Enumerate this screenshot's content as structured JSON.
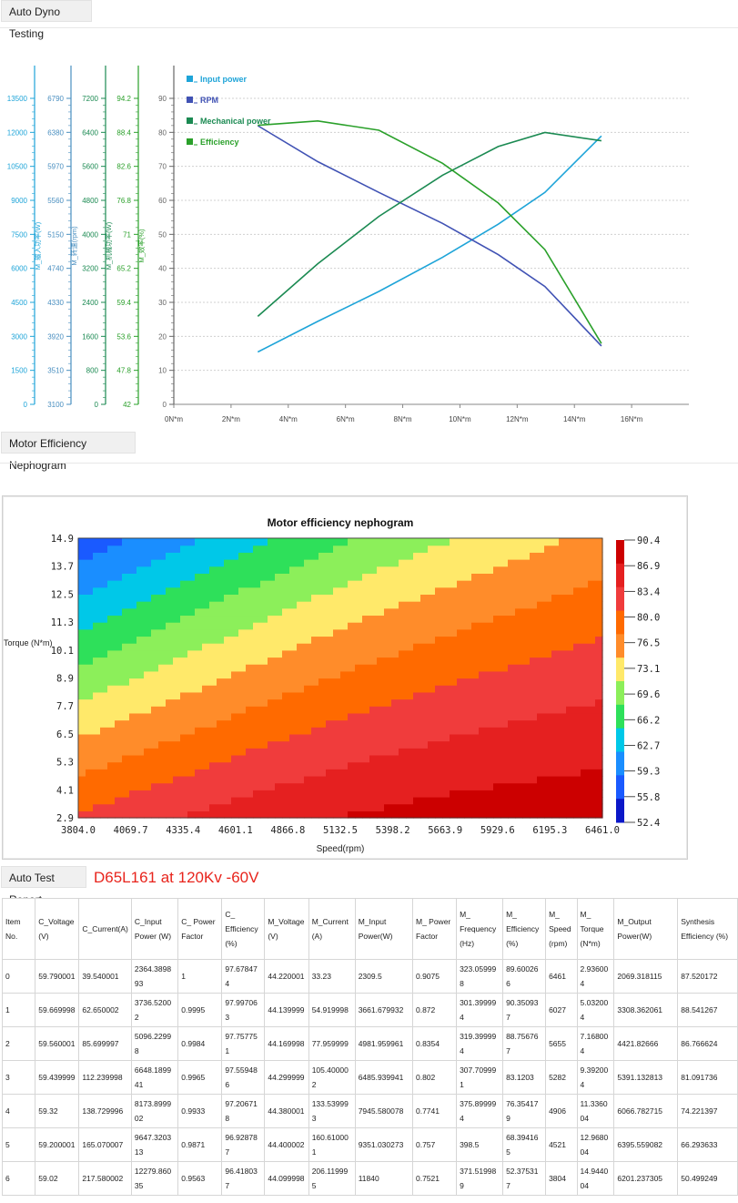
{
  "sections": {
    "dyno_label": "Auto Dyno Testing",
    "nephogram_label": "Motor Efficiency Nephogram",
    "report_label": "Auto Test Report",
    "report_title": "D65L161 at 120Kv -60V"
  },
  "colors": {
    "input_power": "#1ea4d8",
    "rpm": "#4052b4",
    "mechanical_power": "#1b8a52",
    "efficiency": "#2aa02a",
    "grid": "#d0d0d0"
  },
  "chart_data": [
    {
      "type": "line",
      "title": "",
      "xlabel": "",
      "x_ticks": [
        "0N*m",
        "2N*m",
        "4N*m",
        "6N*m",
        "8N*m",
        "10N*m",
        "12N*m",
        "14N*m",
        "16N*m"
      ],
      "xlim": [
        0,
        18
      ],
      "legend": [
        "Input power",
        "RPM",
        "Mechanical power",
        "Efficiency"
      ],
      "legend_position": "top-left",
      "grid": true,
      "axes": [
        {
          "label": "M_输入功率(W)",
          "ticks": [
            "0",
            "1500",
            "3000",
            "4500",
            "6000",
            "7500",
            "9000",
            "10500",
            "12000",
            "13500"
          ],
          "color": "#1ea4d8",
          "min": 0,
          "max": 15000
        },
        {
          "label": "M_转速(rpm)",
          "ticks": [
            "3100",
            "3510",
            "3920",
            "4330",
            "4740",
            "5150",
            "5560",
            "5970",
            "6380",
            "6790"
          ],
          "color": "#4a8fc0",
          "min": 3100,
          "max": 7200
        },
        {
          "label": "M_机械功率(W)",
          "ticks": [
            "0",
            "800",
            "1600",
            "2400",
            "3200",
            "4000",
            "4800",
            "5600",
            "6400",
            "7200"
          ],
          "color": "#1b8a52",
          "min": 0,
          "max": 8000
        },
        {
          "label": "M_效率(%)",
          "ticks": [
            "42",
            "47.8",
            "53.6",
            "59.4",
            "65.2",
            "71",
            "76.8",
            "82.6",
            "88.4",
            "94.2"
          ],
          "color": "#2aa02a",
          "min": 42,
          "max": 100
        },
        {
          "label": "",
          "ticks": [
            "0",
            "10",
            "20",
            "30",
            "40",
            "50",
            "60",
            "70",
            "80",
            "90"
          ],
          "color": "#666666",
          "min": 0,
          "max": 100
        }
      ],
      "series": [
        {
          "name": "Input power",
          "x": [
            2.936,
            5.032,
            7.168,
            9.392,
            11.336,
            12.968,
            14.944
          ],
          "y": [
            2309.5,
            3661.68,
            4981.96,
            6485.94,
            7945.58,
            9351.03,
            11840
          ]
        },
        {
          "name": "RPM",
          "x": [
            2.936,
            5.032,
            7.168,
            9.392,
            11.336,
            12.968,
            14.944
          ],
          "y": [
            6461,
            6027,
            5655,
            5282,
            4906,
            4521,
            3804
          ]
        },
        {
          "name": "Mechanical power",
          "x": [
            2.936,
            5.032,
            7.168,
            9.392,
            11.336,
            12.968,
            14.944
          ],
          "y": [
            2069.32,
            3308.36,
            4421.83,
            5391.13,
            6066.78,
            6395.56,
            6201.24
          ]
        },
        {
          "name": "Efficiency",
          "x": [
            2.936,
            5.032,
            7.168,
            9.392,
            11.336,
            12.968,
            14.944
          ],
          "y": [
            89.6,
            90.35,
            88.76,
            83.12,
            76.35,
            68.39,
            52.38
          ]
        }
      ]
    },
    {
      "type": "heatmap",
      "title": "Motor efficiency nephogram",
      "xlabel": "Speed(rpm)",
      "ylabel": "Torque (N*m)",
      "x_ticks": [
        "3804.0",
        "4069.7",
        "4335.4",
        "4601.1",
        "4866.8",
        "5132.5",
        "5398.2",
        "5663.9",
        "5929.6",
        "6195.3",
        "6461.0"
      ],
      "y_ticks": [
        "2.9",
        "4.1",
        "5.3",
        "6.5",
        "7.7",
        "8.9",
        "10.1",
        "11.3",
        "12.5",
        "13.7",
        "14.9"
      ],
      "xlim": [
        3804.0,
        6461.0
      ],
      "ylim": [
        2.9,
        14.9
      ],
      "colorbar_ticks": [
        "90.4",
        "86.9",
        "83.4",
        "80.0",
        "76.5",
        "73.1",
        "69.6",
        "66.2",
        "62.7",
        "59.3",
        "55.8",
        "52.4"
      ],
      "colorbar_colors": [
        "#cc0000",
        "#e52020",
        "#f03c3c",
        "#ff6a00",
        "#ff8c2a",
        "#ffe96a",
        "#8cef5a",
        "#2ee05a",
        "#00c8e8",
        "#1a8eff",
        "#1a5aff",
        "#0b18c8"
      ]
    },
    {
      "type": "table",
      "columns": [
        "Item No.",
        "C_Voltage (V)",
        "C_Current(A)",
        "C_Input Power (W)",
        "C_ Power Factor",
        "C_ Efficiency (%)",
        "M_Voltage (V)",
        "M_Current (A)",
        "M_Input Power(W)",
        "M_ Power Factor",
        "M_ Frequency (Hz)",
        "M_ Efficiency (%)",
        "M_ Speed (rpm)",
        "M_ Torque (N*m)",
        "M_Output Power(W)",
        "Synthesis Efficiency (%)"
      ],
      "rows": [
        [
          "0",
          "59.790001",
          "39.540001",
          "2364.389893",
          "1",
          "97.678474",
          "44.220001",
          "33.23",
          "2309.5",
          "0.9075",
          "323.059998",
          "89.600266",
          "6461",
          "2.936004",
          "2069.318115",
          "87.520172"
        ],
        [
          "1",
          "59.669998",
          "62.650002",
          "3736.52002",
          "0.9995",
          "97.997063",
          "44.139999",
          "54.919998",
          "3661.679932",
          "0.872",
          "301.399994",
          "90.350937",
          "6027",
          "5.032004",
          "3308.362061",
          "88.541267"
        ],
        [
          "2",
          "59.560001",
          "85.699997",
          "5096.22998",
          "0.9984",
          "97.757751",
          "44.169998",
          "77.959999",
          "4981.959961",
          "0.8354",
          "319.399994",
          "88.756767",
          "5655",
          "7.168004",
          "4421.82666",
          "86.766624"
        ],
        [
          "3",
          "59.439999",
          "112.239998",
          "6648.189941",
          "0.9965",
          "97.559486",
          "44.299999",
          "105.400002",
          "6485.939941",
          "0.802",
          "307.709991",
          "83.1203",
          "5282",
          "9.392004",
          "5391.132813",
          "81.091736"
        ],
        [
          "4",
          "59.32",
          "138.729996",
          "8173.899902",
          "0.9933",
          "97.206718",
          "44.380001",
          "133.539993",
          "7945.580078",
          "0.7741",
          "375.899994",
          "76.354179",
          "4906",
          "11.336004",
          "6066.782715",
          "74.221397"
        ],
        [
          "5",
          "59.200001",
          "165.070007",
          "9647.320313",
          "0.9871",
          "96.928787",
          "44.400002",
          "160.610001",
          "9351.030273",
          "0.757",
          "398.5",
          "68.394165",
          "4521",
          "12.968004",
          "6395.559082",
          "66.293633"
        ],
        [
          "6",
          "59.02",
          "217.580002",
          "12279.86035",
          "0.9563",
          "96.418037",
          "44.099998",
          "206.119995",
          "11840",
          "0.7521",
          "371.519989",
          "52.375317",
          "3804",
          "14.944004",
          "6201.237305",
          "50.499249"
        ]
      ]
    }
  ]
}
